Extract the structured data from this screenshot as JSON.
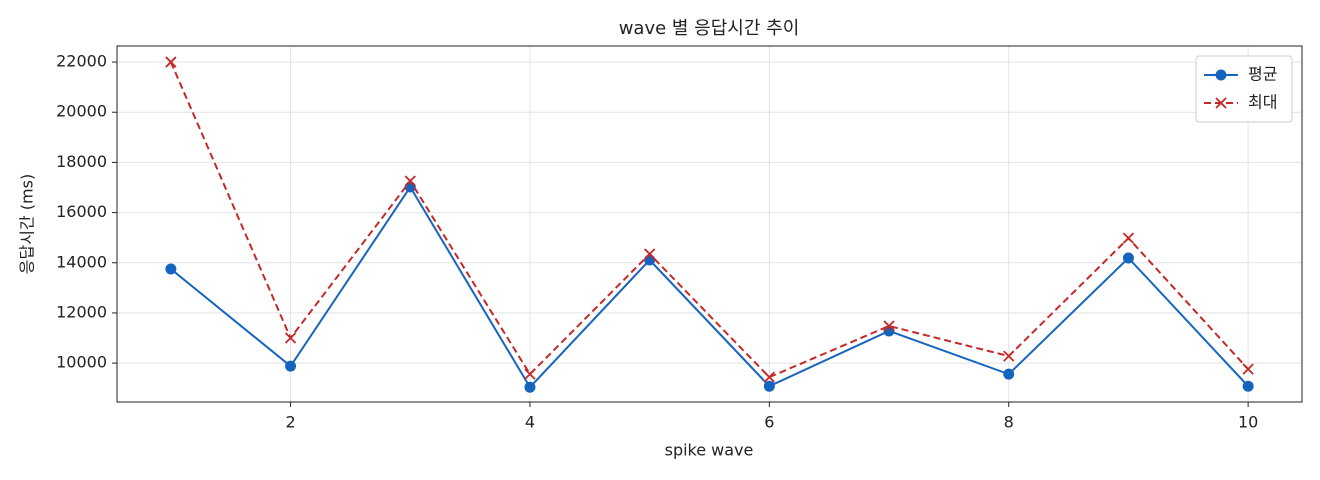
{
  "chart_data": {
    "type": "line",
    "title": "wave 별 응답시간 추이",
    "x_label": "spike wave",
    "y_label": "응답시간 (ms)",
    "x": [
      1,
      2,
      3,
      4,
      5,
      6,
      7,
      8,
      9,
      10
    ],
    "series": [
      {
        "name": "평균",
        "color": "#1565c0",
        "marker": "o",
        "linestyle": "solid",
        "values": [
          13750,
          9880,
          17020,
          9040,
          14110,
          9080,
          11280,
          9560,
          14190,
          9080
        ]
      },
      {
        "name": "최대",
        "color": "#c62828",
        "marker": "x",
        "linestyle": "dashed",
        "values": [
          22000,
          11000,
          17260,
          9560,
          14350,
          9440,
          11480,
          10280,
          14980,
          9760
        ]
      }
    ],
    "xlim": [
      0.55,
      10.45
    ],
    "xticks": [
      2,
      4,
      6,
      8,
      10
    ],
    "ylim": [
      8450,
      22640
    ],
    "yticks": [
      10000,
      12000,
      14000,
      16000,
      18000,
      20000,
      22000
    ],
    "grid": true,
    "legend": "upper right"
  }
}
